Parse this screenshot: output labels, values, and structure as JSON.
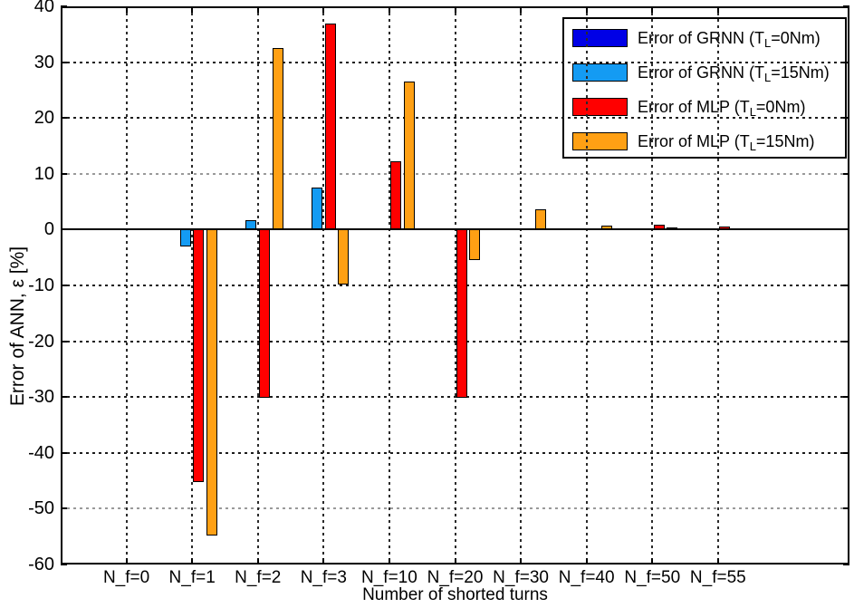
{
  "chart_data": {
    "type": "bar",
    "title": "",
    "xlabel": "Number of shorted turns",
    "ylabel": "Error of ANN, ε [%]",
    "ylim": [
      -60,
      40
    ],
    "yticks": [
      40,
      30,
      20,
      10,
      0,
      -10,
      -20,
      -30,
      -40,
      -50,
      -60
    ],
    "gray_gridlines": [
      10,
      -50
    ],
    "grid": true,
    "legend_position": "top-right",
    "background": "#FFFFFF",
    "axis_color": "#000000",
    "categories": [
      "N_f=0",
      "N_f=1",
      "N_f=2",
      "N_f=3",
      "N_f=10",
      "N_f=20",
      "N_f=30",
      "N_f=40",
      "N_f=50",
      "N_f=55"
    ],
    "series": [
      {
        "name": "Error of GRNN (T_L=0Nm)",
        "color": "#0000E6",
        "values": [
          0,
          0,
          0,
          0,
          0,
          0,
          0,
          0,
          0,
          0
        ]
      },
      {
        "name": "Error of GRNN (T_L=15Nm)",
        "color": "#149BF3",
        "values": [
          0,
          -3.0,
          1.7,
          7.5,
          0,
          0,
          0,
          0,
          0,
          0
        ]
      },
      {
        "name": "Error of MLP (T_L=0Nm)",
        "color": "#FF0000",
        "values": [
          0,
          -45.3,
          -30.2,
          36.9,
          12.2,
          -30.2,
          0,
          0,
          0.8,
          0.5
        ]
      },
      {
        "name": "Error of MLP (T_L=15Nm)",
        "color": "#FFA014",
        "values": [
          0,
          -54.8,
          32.6,
          -9.8,
          26.5,
          -5.5,
          3.6,
          0.7,
          0.4,
          0
        ]
      }
    ]
  }
}
